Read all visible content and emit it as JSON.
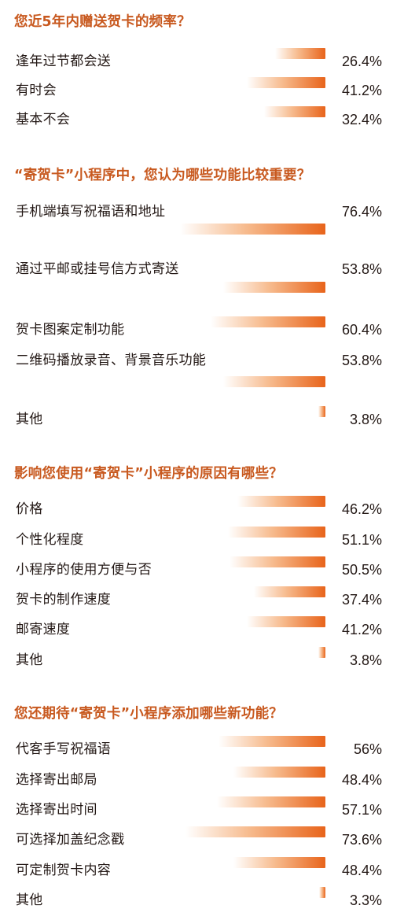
{
  "colors": {
    "title": "#c8591f",
    "bar_start": "#f7c79a",
    "bar_end": "#e8641b",
    "text": "#231815"
  },
  "chart_data": [
    {
      "type": "bar",
      "orientation": "horizontal",
      "title": "您近5年内赠送贺卡的频率？",
      "categories": [
        "逢年过节都会送",
        "有时会",
        "基本不会"
      ],
      "values": [
        26.4,
        41.2,
        32.4
      ],
      "labels": [
        "26.4%",
        "41.2%",
        "32.4%"
      ]
    },
    {
      "type": "bar",
      "orientation": "horizontal",
      "title": "“寄贺卡”小程序中，您认为哪些功能比较重要？",
      "categories": [
        "手机端填写祝福语和地址",
        "通过平邮或挂号信方式寄送",
        "贺卡图案定制功能",
        "二维码播放录音、背景音乐功能",
        "其他"
      ],
      "values": [
        76.4,
        53.8,
        60.4,
        53.8,
        3.8
      ],
      "labels": [
        "76.4%",
        "53.8%",
        "60.4%",
        "53.8%",
        "3.8%"
      ]
    },
    {
      "type": "bar",
      "orientation": "horizontal",
      "title": "影响您使用“寄贺卡”小程序的原因有哪些？",
      "categories": [
        "价格",
        "个性化程度",
        "小程序的使用方便与否",
        "贺卡的制作速度",
        "邮寄速度",
        "其他"
      ],
      "values": [
        46.2,
        51.1,
        50.5,
        37.4,
        41.2,
        3.8
      ],
      "labels": [
        "46.2%",
        "51.1%",
        "50.5%",
        "37.4%",
        "41.2%",
        "3.8%"
      ]
    },
    {
      "type": "bar",
      "orientation": "horizontal",
      "title": "您还期待“寄贺卡”小程序添加哪些新功能？",
      "categories": [
        "代客手写祝福语",
        "选择寄出邮局",
        "选择寄出时间",
        "可选择加盖纪念戳",
        "可定制贺卡内容",
        "其他"
      ],
      "values": [
        56,
        48.4,
        57.1,
        73.6,
        48.4,
        3.3
      ],
      "labels": [
        "56%",
        "48.4%",
        "57.1%",
        "73.6%",
        "48.4%",
        "3.3%"
      ]
    }
  ]
}
